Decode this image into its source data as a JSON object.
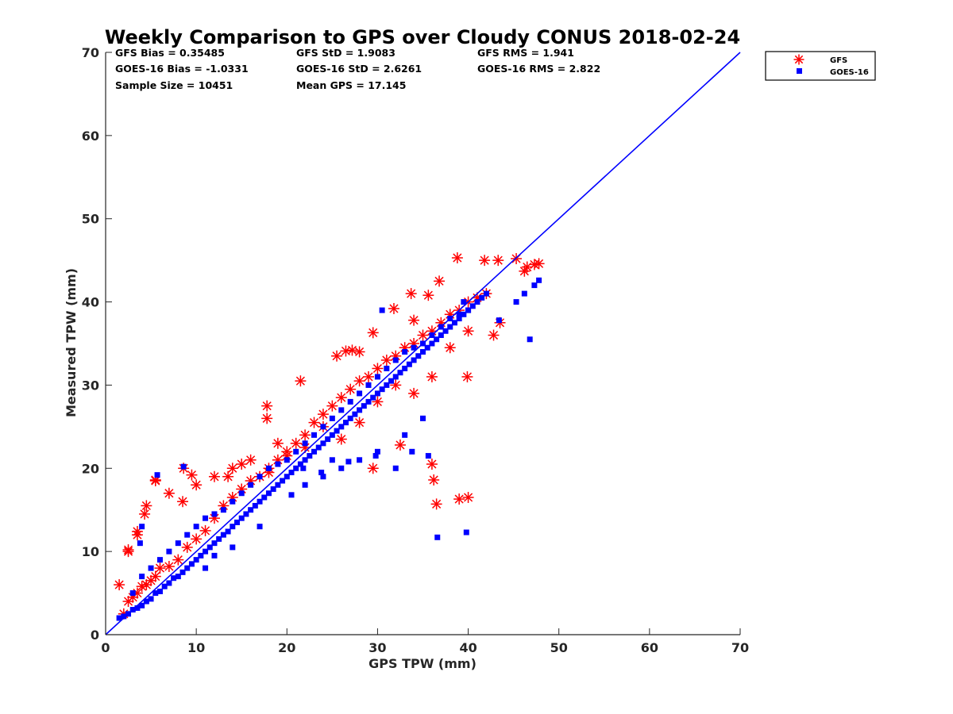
{
  "chart_data": {
    "type": "scatter",
    "title": "Weekly Comparison to GPS over Cloudy CONUS 2018-02-24",
    "xlabel": "GPS TPW (mm)",
    "ylabel": "Measured TPW (mm)",
    "xlim": [
      0,
      70
    ],
    "ylim": [
      0,
      70
    ],
    "xticks": [
      "0",
      "10",
      "20",
      "30",
      "40",
      "50",
      "60",
      "70"
    ],
    "yticks": [
      "0",
      "10",
      "20",
      "30",
      "40",
      "50",
      "60",
      "70"
    ],
    "grid": false,
    "legend": {
      "placement": "outside-top-right",
      "entries": [
        "GFS",
        "GOES-16"
      ]
    },
    "stats": [
      [
        "GFS Bias = 0.35485",
        "GFS StD = 1.9083",
        "GFS RMS = 1.941"
      ],
      [
        "GOES-16 Bias = -1.0331",
        "GOES-16 StD = 2.6261",
        "GOES-16 RMS = 2.822"
      ],
      [
        "Sample Size = 10451",
        "Mean GPS = 17.145"
      ]
    ],
    "reference_line": {
      "x": [
        0,
        70
      ],
      "y": [
        0,
        70
      ],
      "color": "#0000ff"
    },
    "series": [
      {
        "name": "GFS",
        "marker": "asterisk",
        "color": "#ff0000",
        "x": [
          1.5,
          2,
          2.5,
          3,
          3.5,
          4,
          4.5,
          5,
          5.5,
          6,
          7,
          8,
          9,
          10,
          11,
          12,
          13,
          14,
          15,
          16,
          17,
          18,
          19,
          20,
          21,
          22,
          23,
          24,
          25,
          26,
          27,
          28,
          29,
          30,
          31,
          32,
          33,
          34,
          35,
          36,
          37,
          38,
          39,
          40,
          41,
          42,
          2.5,
          3.5,
          4.5,
          5.5,
          7,
          8.5,
          10,
          12,
          14,
          16,
          18,
          20,
          22,
          24,
          26,
          28,
          30,
          32,
          34,
          36,
          38,
          40,
          5.5,
          2.5,
          3.5,
          4.3,
          8.6,
          9.5,
          13.5,
          15,
          17.8,
          17.8,
          19,
          21.5,
          25.5,
          27.2,
          29.5,
          31.8,
          33.7,
          35.6,
          36.8,
          38.8,
          41.8,
          43.3,
          45.3,
          46.2,
          47.3,
          47.8,
          46.5,
          42.8,
          43.5,
          39.9,
          36.5,
          36.2,
          36,
          39,
          40,
          34,
          29.5,
          32.5,
          28,
          26.5
        ],
        "y": [
          6,
          2.5,
          4,
          4.5,
          5,
          5.8,
          6,
          6.5,
          7,
          8,
          8.2,
          9,
          10.5,
          11.5,
          12.5,
          14,
          15.5,
          16.5,
          17.5,
          18.5,
          19,
          20,
          21,
          22,
          23,
          24,
          25.5,
          26.5,
          27.5,
          28.5,
          29.5,
          30.5,
          31,
          32,
          33,
          33.5,
          34.5,
          35,
          36,
          36.5,
          37.5,
          38.5,
          39,
          40,
          40.5,
          41,
          10,
          12,
          15.5,
          18.5,
          17,
          16,
          18,
          19,
          20,
          21,
          19.5,
          21.5,
          22.5,
          25,
          23.5,
          25.5,
          28,
          30,
          29,
          31,
          34.5,
          36.5,
          18.6,
          10.2,
          12.4,
          14.5,
          20,
          19.2,
          19,
          20.5,
          27.5,
          26,
          23,
          30.5,
          33.5,
          34.2,
          36.3,
          39.2,
          41,
          40.8,
          42.5,
          45.3,
          45,
          45,
          45.2,
          43.7,
          44.5,
          44.6,
          44.2,
          36,
          37.5,
          31,
          15.7,
          18.6,
          20.5,
          16.3,
          16.5,
          37.8,
          20,
          22.8,
          34,
          34.1
        ]
      },
      {
        "name": "GOES-16",
        "marker": "square",
        "color": "#0000ff",
        "x": [
          1.5,
          2,
          2.5,
          3,
          3.5,
          4,
          4.5,
          5,
          5.5,
          6,
          6.5,
          7,
          7.5,
          8,
          8.5,
          9,
          9.5,
          10,
          10.5,
          11,
          11.5,
          12,
          12.5,
          13,
          13.5,
          14,
          14.5,
          15,
          15.5,
          16,
          16.5,
          17,
          17.5,
          18,
          18.5,
          19,
          19.5,
          20,
          20.5,
          21,
          21.5,
          22,
          22.5,
          23,
          23.5,
          24,
          24.5,
          25,
          25.5,
          26,
          26.5,
          27,
          27.5,
          28,
          28.5,
          29,
          29.5,
          30,
          30.5,
          31,
          31.5,
          32,
          32.5,
          33,
          33.5,
          34,
          34.5,
          35,
          35.5,
          36,
          36.5,
          37,
          37.5,
          38,
          38.5,
          39,
          39.5,
          40,
          40.5,
          41,
          41.5,
          42,
          3,
          4,
          5,
          6,
          7,
          8,
          9,
          10,
          11,
          12,
          13,
          14,
          15,
          16,
          17,
          18,
          19,
          20,
          21,
          22,
          23,
          24,
          25,
          26,
          27,
          28,
          29,
          30,
          31,
          32,
          33,
          34,
          35,
          36,
          37,
          38,
          39,
          40,
          5.7,
          4,
          3.8,
          8.6,
          11,
          12,
          14,
          17,
          22,
          24,
          26,
          28,
          30,
          33,
          35,
          35.6,
          36.6,
          39.8,
          43.4,
          45.3,
          46.2,
          47.3,
          47.8,
          46.8,
          39.5,
          30.5,
          29.8,
          32,
          33.8,
          25,
          20.5,
          21.8,
          23.8,
          26.8
        ],
        "y": [
          2,
          2.2,
          2.5,
          3,
          3.2,
          3.5,
          4,
          4.3,
          5,
          5.2,
          5.8,
          6.2,
          6.8,
          7,
          7.5,
          8,
          8.5,
          9,
          9.5,
          10,
          10.5,
          11,
          11.5,
          12,
          12.4,
          13,
          13.5,
          14,
          14.5,
          15,
          15.5,
          16,
          16.5,
          17,
          17.5,
          18,
          18.5,
          19,
          19.5,
          20,
          20.5,
          21,
          21.5,
          22,
          22.5,
          23,
          23.5,
          24,
          24.5,
          25,
          25.5,
          26,
          26.5,
          27,
          27.5,
          28,
          28.5,
          29,
          29.5,
          30,
          30.5,
          31,
          31.5,
          32,
          32.5,
          33,
          33.5,
          34,
          34.5,
          35,
          35.5,
          36,
          36.5,
          37,
          37.5,
          38,
          38.5,
          39,
          39.5,
          40,
          40.5,
          41,
          5,
          7,
          8,
          9,
          10,
          11,
          12,
          13,
          14,
          14.5,
          15,
          16,
          17,
          18,
          19,
          20,
          20.5,
          21,
          22,
          23,
          24,
          25,
          26,
          27,
          28,
          29,
          30,
          31,
          32,
          33,
          34,
          34.5,
          35,
          36,
          37,
          38,
          38.5,
          39,
          19.2,
          13,
          11,
          20.2,
          8,
          9.5,
          10.5,
          13,
          18,
          19,
          20,
          21,
          22,
          24,
          26,
          21.5,
          11.7,
          12.3,
          37.8,
          40,
          41,
          42,
          42.6,
          35.5,
          40,
          39,
          21.5,
          20,
          22,
          21,
          16.8,
          20,
          19.5,
          20.8
        ]
      }
    ]
  }
}
